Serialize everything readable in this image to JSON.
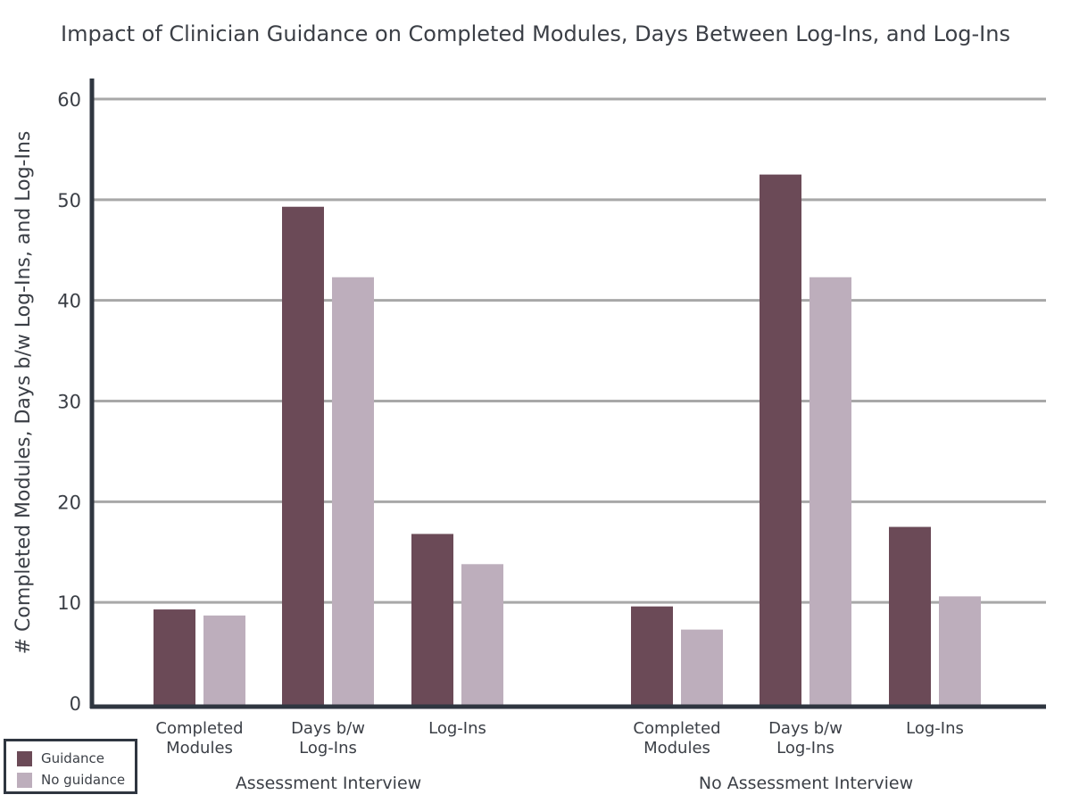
{
  "chart_data": {
    "type": "bar",
    "title": "Impact of Clinician Guidance on Completed Modules, Days Between Log-Ins, and Log-Ins",
    "ylabel": "# Completed Modules, Days b/w Log-Ins, and Log-Ins",
    "xlabel": "",
    "ylim": [
      0,
      60
    ],
    "yticks": [
      "0",
      "10",
      "20",
      "30",
      "40",
      "50",
      "60"
    ],
    "grid": true,
    "legend_position": "bottom-left",
    "groups": [
      {
        "label": "Assessment Interview",
        "categories": [
          [
            "Completed",
            "Modules"
          ],
          [
            "Days b/w",
            "Log-Ins"
          ],
          [
            "Log-Ins"
          ]
        ]
      },
      {
        "label": "No Assessment Interview",
        "categories": [
          [
            "Completed",
            "Modules"
          ],
          [
            "Days b/w",
            "Log-Ins"
          ],
          [
            "Log-Ins"
          ]
        ]
      }
    ],
    "series": [
      {
        "name": "Guidance",
        "color": "#6b4a57",
        "values": [
          9.3,
          49.3,
          16.8,
          9.6,
          52.5,
          17.5
        ]
      },
      {
        "name": "No guidance",
        "color": "#bdaebc",
        "values": [
          8.7,
          42.3,
          13.8,
          7.3,
          42.3,
          10.6
        ]
      }
    ]
  },
  "colors": {
    "axis": "#2f3640",
    "grid": "#a8a8a8",
    "text": "#3b3f46"
  }
}
